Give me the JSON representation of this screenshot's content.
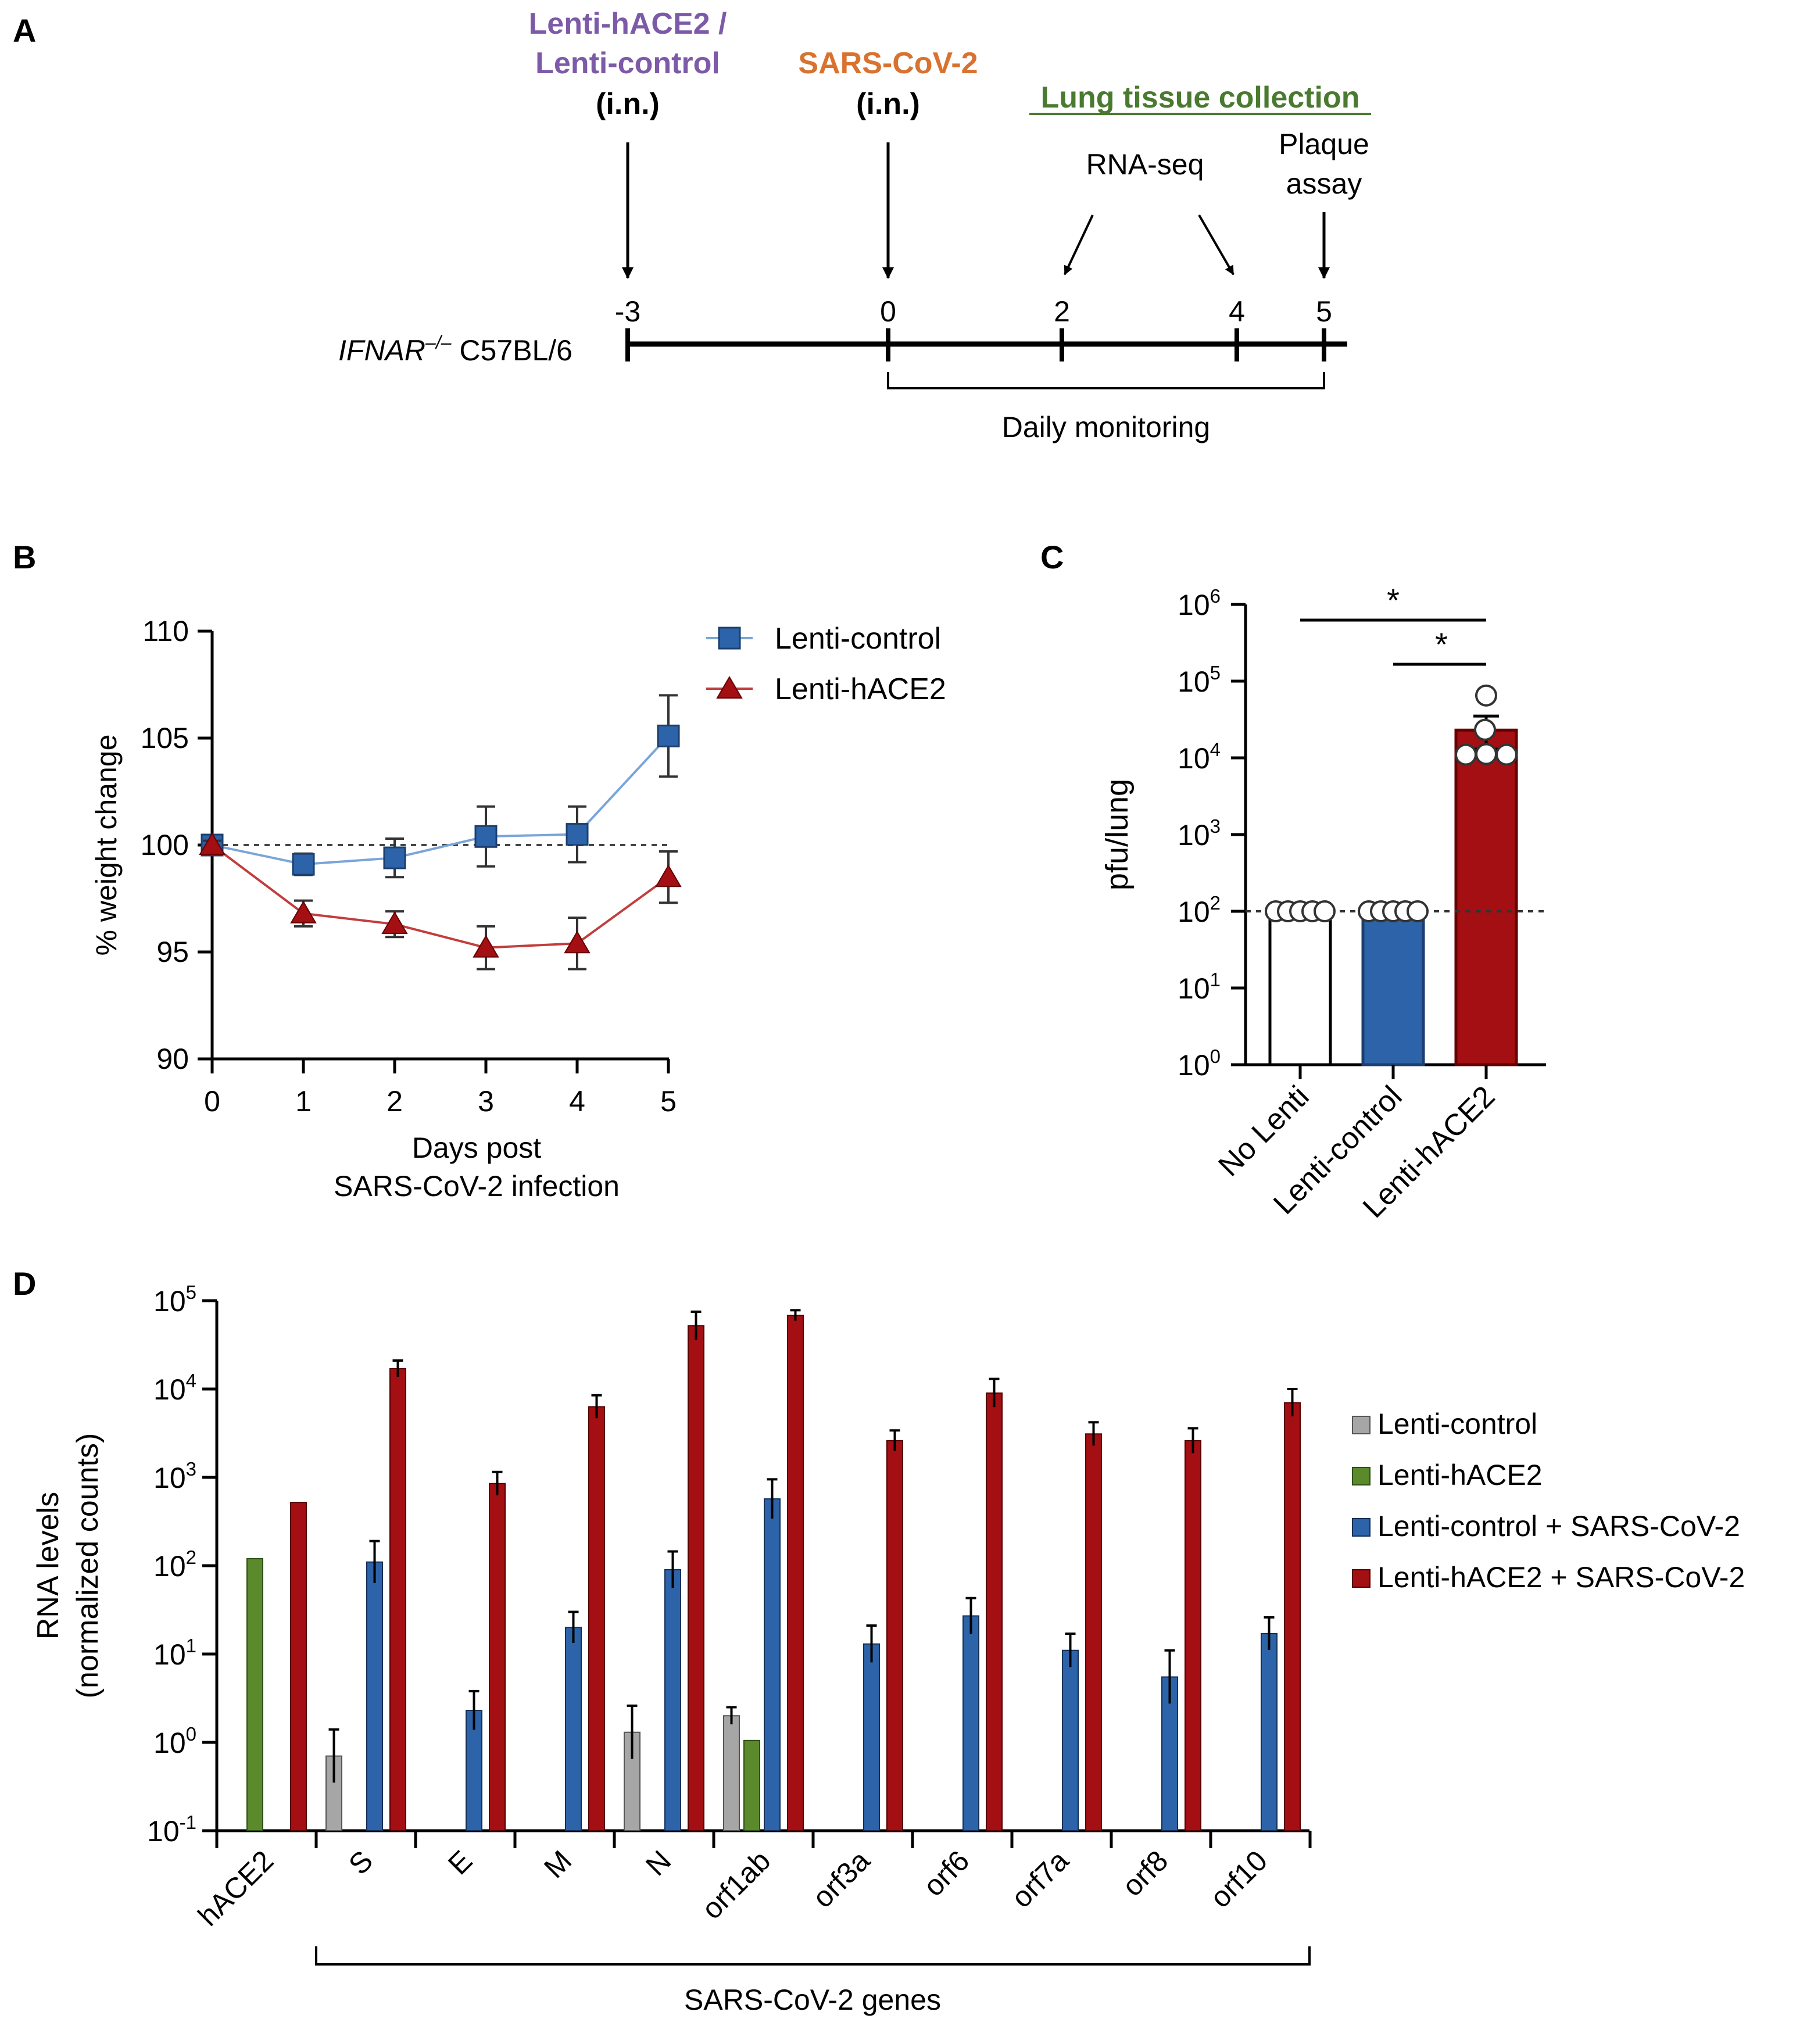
{
  "panels": {
    "a": "A",
    "b": "B",
    "c": "C",
    "d": "D"
  },
  "colors": {
    "purple": "#7d5aa8",
    "orange": "#d9722e",
    "green_title": "#4a7a2f",
    "blue": "#2d63a8",
    "dark_red": "#a30f12",
    "gray": "#a6a6a6",
    "green": "#5a8a2c",
    "blue_line": "#7aa5d8",
    "red_line": "#c23d3d"
  },
  "timeline": {
    "label_italic": "IFNAR",
    "label_sup": "–/–",
    "label_rest": " C57BL/6",
    "ticks": [
      "-3",
      "0",
      "2",
      "4",
      "5"
    ],
    "lenti_line1": "Lenti-hACE2  /",
    "lenti_line2": "Lenti-control",
    "lenti_route": "(i.n.)",
    "sars_line1": "SARS-CoV-2",
    "sars_route": "(i.n.)",
    "lung_title": "Lung tissue collection",
    "rnaseq": "RNA-seq",
    "plaque_line1": "Plaque",
    "plaque_line2": "assay",
    "monitoring": "Daily monitoring"
  },
  "chart_data": [
    {
      "id": "B",
      "type": "line",
      "ylabel": "% weight change",
      "xlabel_line1": "Days post",
      "xlabel_line2": "SARS-CoV-2 infection",
      "x": [
        0,
        1,
        2,
        3,
        4,
        5
      ],
      "xticks": [
        "0",
        "1",
        "2",
        "3",
        "4",
        "5"
      ],
      "yticks": [
        "90",
        "95",
        "100",
        "105",
        "110"
      ],
      "ylim": [
        90,
        110
      ],
      "reference_line": 100,
      "legend_position": "top-right",
      "series": [
        {
          "name": "Lenti-control",
          "marker": "square",
          "values": [
            100,
            99.1,
            99.4,
            100.4,
            100.5,
            105.1
          ],
          "err": [
            0.2,
            0.5,
            0.9,
            1.4,
            1.3,
            1.9
          ]
        },
        {
          "name": "Lenti-hACE2",
          "marker": "triangle",
          "values": [
            100,
            96.8,
            96.3,
            95.2,
            95.4,
            98.5
          ],
          "err": [
            0.2,
            0.6,
            0.6,
            1.0,
            1.2,
            1.2
          ]
        }
      ]
    },
    {
      "id": "C",
      "type": "bar",
      "scale": "log",
      "ylabel": "pfu/lung",
      "categories": [
        "No Lenti",
        "Lenti-control",
        "Lenti-hACE2"
      ],
      "values": [
        100,
        100,
        23000
      ],
      "err_upper": [
        null,
        null,
        35000
      ],
      "err_lower": [
        null,
        null,
        13000
      ],
      "points": [
        [
          100,
          100,
          100,
          100,
          100
        ],
        [
          100,
          100,
          100,
          100,
          100
        ],
        [
          65000,
          22000,
          12000,
          11000,
          11000
        ]
      ],
      "detection_limit": 100,
      "ytick_base": "10",
      "ytick_exps": [
        "0",
        "1",
        "2",
        "3",
        "4",
        "5",
        "6"
      ],
      "ylim_exp": [
        0,
        6
      ],
      "significance": [
        "*",
        "*"
      ]
    },
    {
      "id": "D",
      "type": "bar",
      "scale": "log",
      "ylabel_line1": "RNA levels",
      "ylabel_line2": "(normalized counts)",
      "xgroup_label": "SARS-CoV-2 genes",
      "categories": [
        "hACE2",
        "S",
        "E",
        "M",
        "N",
        "orf1ab",
        "orf3a",
        "orf6",
        "orf7a",
        "orf8",
        "orf10"
      ],
      "ytick_base": "10",
      "ytick_exps": [
        "-1",
        "0",
        "1",
        "2",
        "3",
        "4",
        "5"
      ],
      "ylim_exp": [
        -1,
        5
      ],
      "legend_position": "right",
      "series": [
        {
          "name": "Lenti-control",
          "values": [
            null,
            0.7,
            null,
            null,
            1.3,
            2.0,
            null,
            null,
            null,
            null,
            null
          ],
          "err": [
            null,
            1.4,
            null,
            null,
            2.6,
            2.5,
            null,
            null,
            null,
            null,
            null
          ]
        },
        {
          "name": "Lenti-hACE2",
          "values": [
            120,
            null,
            null,
            null,
            null,
            1.05,
            null,
            null,
            null,
            null,
            null
          ],
          "err": [
            null,
            null,
            null,
            null,
            null,
            null,
            null,
            null,
            null,
            null,
            null
          ]
        },
        {
          "name": "Lenti-control + SARS-CoV-2",
          "values": [
            null,
            110,
            2.3,
            20,
            90,
            570,
            13,
            27,
            11,
            5.5,
            17
          ],
          "err": [
            null,
            190,
            3.8,
            30,
            145,
            950,
            21,
            43,
            17,
            11,
            26
          ]
        },
        {
          "name": "Lenti-hACE2 + SARS-CoV-2",
          "values": [
            520,
            17000,
            850,
            6300,
            52000,
            68000,
            2600,
            9000,
            3100,
            2600,
            7000
          ],
          "err": [
            null,
            21000,
            1150,
            8500,
            75000,
            78000,
            3400,
            13000,
            4200,
            3600,
            10000
          ]
        }
      ]
    }
  ]
}
